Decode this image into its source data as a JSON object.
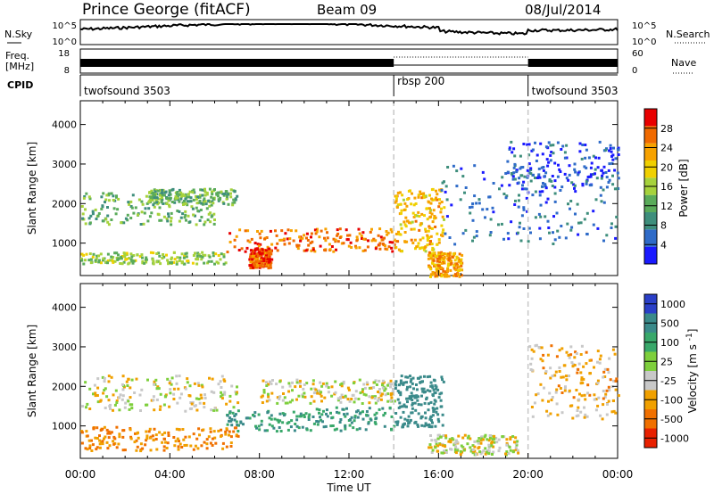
{
  "header": {
    "station": "Prince George (fitACF)",
    "beam": "Beam 09",
    "date": "08/Jul/2014"
  },
  "top_strip": {
    "nsky_label": "N.Sky",
    "nsky_ticks": [
      "10^5",
      "10^0"
    ],
    "nsearch_label": "N.Search",
    "nsearch_ticks": [
      "10^5",
      "10^0"
    ],
    "freq_label": "Freq.",
    "freq_unit": "[MHz]",
    "freq_ticks": [
      "18",
      "8"
    ],
    "nave_label": "Nave",
    "nave_ticks": [
      "60",
      "0"
    ],
    "cpid_label": "CPID"
  },
  "cpid_segments": [
    {
      "name": "twofsound 3503",
      "start_h": 0,
      "end_h": 14
    },
    {
      "name": "rbsp 200",
      "start_h": 14,
      "end_h": 20
    },
    {
      "name": "twofsound 3503",
      "start_h": 20,
      "end_h": 24
    }
  ],
  "x_axis": {
    "label": "Time UT",
    "ticks": [
      "00:00",
      "04:00",
      "08:00",
      "12:00",
      "16:00",
      "20:00",
      "00:00"
    ],
    "range_h": [
      0,
      24
    ]
  },
  "y_axis": {
    "label": "Slant Range [km]",
    "ticks": [
      "1000",
      "2000",
      "3000",
      "4000"
    ],
    "range_km": [
      180,
      4600
    ]
  },
  "power_scale": {
    "label": "Power [dB]",
    "ticks": [
      "4",
      "8",
      "12",
      "16",
      "20",
      "24",
      "28"
    ],
    "colors": [
      "#1a1aff",
      "#2f6bc8",
      "#3e8e7c",
      "#5aab5a",
      "#a6d23c",
      "#f0d000",
      "#f7a200",
      "#f06a00",
      "#e80000"
    ]
  },
  "velocity_scale": {
    "label": "Velocity [m s^-1]",
    "ticks": [
      "1000",
      "500",
      "100",
      "25",
      "-25",
      "-100",
      "-500",
      "-1000"
    ],
    "colors": [
      "#2a3fc8",
      "#3a8a8a",
      "#38a86a",
      "#7ecf3c",
      "#c8c8c8",
      "#f0a000",
      "#f07000",
      "#e82000"
    ]
  },
  "chart_data": {
    "type": "heatmap",
    "panels": [
      {
        "name": "Power",
        "quantity_unit": "dB",
        "bands": [
          {
            "start_h": 0.0,
            "end_h": 6.5,
            "range_km_low": 500,
            "range_km_high": 800,
            "level_db": 16
          },
          {
            "start_h": 0.0,
            "end_h": 6.0,
            "range_km_low": 1500,
            "range_km_high": 2300,
            "level_db": 14
          },
          {
            "start_h": 3.0,
            "end_h": 7.0,
            "range_km_low": 2000,
            "range_km_high": 2400,
            "level_db": 14
          },
          {
            "start_h": 6.5,
            "end_h": 14.0,
            "range_km_low": 800,
            "range_km_high": 1400,
            "level_db": 26
          },
          {
            "start_h": 7.5,
            "end_h": 8.5,
            "range_km_low": 400,
            "range_km_high": 900,
            "level_db": 28
          },
          {
            "start_h": 14.0,
            "end_h": 16.2,
            "range_km_low": 800,
            "range_km_high": 2400,
            "level_db": 22
          },
          {
            "start_h": 15.5,
            "end_h": 17.0,
            "range_km_low": 180,
            "range_km_high": 800,
            "level_db": 24
          },
          {
            "start_h": 16.0,
            "end_h": 24.0,
            "range_km_low": 1000,
            "range_km_high": 3000,
            "level_db": 8
          },
          {
            "start_h": 19.0,
            "end_h": 24.0,
            "range_km_low": 2400,
            "range_km_high": 3600,
            "level_db": 6
          }
        ]
      },
      {
        "name": "Velocity",
        "quantity_unit": "m s^-1",
        "bands": [
          {
            "start_h": 0.0,
            "end_h": 7.0,
            "range_km_low": 1400,
            "range_km_high": 2300,
            "velocity": 0
          },
          {
            "start_h": 0.0,
            "end_h": 7.0,
            "range_km_low": 400,
            "range_km_high": 1000,
            "velocity": -100
          },
          {
            "start_h": 6.5,
            "end_h": 14.0,
            "range_km_low": 900,
            "range_km_high": 1500,
            "velocity": 300
          },
          {
            "start_h": 8.0,
            "end_h": 14.0,
            "range_km_low": 1600,
            "range_km_high": 2200,
            "velocity": 0
          },
          {
            "start_h": 14.0,
            "end_h": 16.2,
            "range_km_low": 1000,
            "range_km_high": 2300,
            "velocity": 400
          },
          {
            "start_h": 15.5,
            "end_h": 19.5,
            "range_km_low": 300,
            "range_km_high": 800,
            "velocity": 0
          },
          {
            "start_h": 20.0,
            "end_h": 24.0,
            "range_km_low": 1200,
            "range_km_high": 3100,
            "velocity": -50
          }
        ]
      }
    ]
  }
}
